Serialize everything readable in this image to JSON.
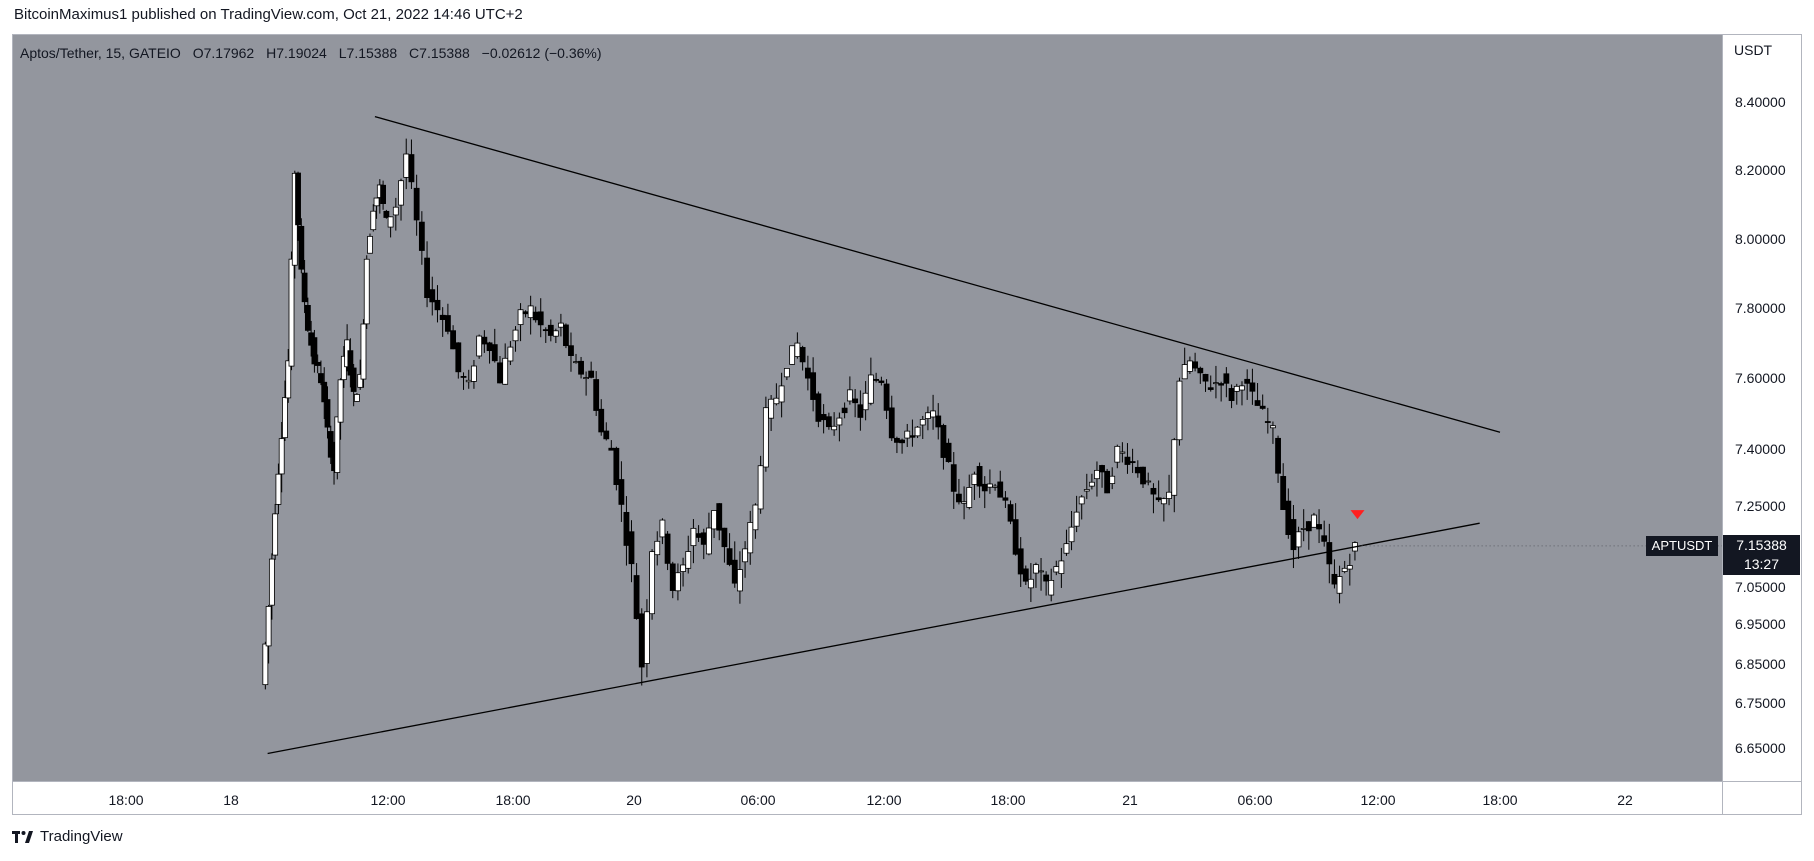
{
  "publisher": "BitcoinMaximus1 published on TradingView.com, Oct 21, 2022 14:46 UTC+2",
  "legend": {
    "symbol": "Aptos/Tether, 15, GATEIO",
    "o_key": "O",
    "o": "7.17962",
    "h_key": "H",
    "h": "7.19024",
    "l_key": "L",
    "l": "7.15388",
    "c_key": "C",
    "c": "7.15388",
    "change": "−0.02612 (−0.36%)"
  },
  "currency": "USDT",
  "price_ticks": [
    "8.40000",
    "8.20000",
    "8.00000",
    "7.80000",
    "7.60000",
    "7.40000",
    "7.25000",
    "7.05000",
    "6.95000",
    "6.85000",
    "6.75000",
    "6.65000"
  ],
  "time_ticks": [
    "18:00",
    "18",
    "12:00",
    "18:00",
    "20",
    "06:00",
    "12:00",
    "18:00",
    "21",
    "06:00",
    "12:00",
    "18:00",
    "22"
  ],
  "symbol_label": "APTUSDT",
  "last_price": "7.15388",
  "countdown": "13:27",
  "footer_brand": "TradingView",
  "colors": {
    "plot_bg": "#93969e",
    "up": "#ffffff",
    "down": "#000000",
    "marker": "#ff1f1f",
    "trend": "#000000"
  },
  "chart_data": {
    "type": "candlestick",
    "title": "Aptos/Tether, 15, GATEIO",
    "ylabel": "USDT",
    "ylim": [
      6.6,
      8.5
    ],
    "grid": false,
    "price_levels": [
      8.4,
      8.2,
      8.0,
      7.8,
      7.6,
      7.4,
      7.25,
      7.05,
      6.95,
      6.85,
      6.75,
      6.65
    ],
    "time_marks": [
      {
        "label": "18:00",
        "hours": -6
      },
      {
        "label": "18",
        "hours": 0
      },
      {
        "label": "12:00",
        "hours": 12
      },
      {
        "label": "18:00",
        "hours": 18
      },
      {
        "label": "20",
        "hours": 24
      },
      {
        "label": "06:00",
        "hours": 30
      },
      {
        "label": "12:00",
        "hours": 36
      },
      {
        "label": "18:00",
        "hours": 42
      },
      {
        "label": "21",
        "hours": 48
      },
      {
        "label": "06:00",
        "hours": 54
      },
      {
        "label": "12:00",
        "hours": 60
      },
      {
        "label": "18:00",
        "hours": 66
      },
      {
        "label": "22",
        "hours": 72
      }
    ],
    "price_path": [
      [
        2.5,
        6.8
      ],
      [
        3.0,
        7.0
      ],
      [
        3.5,
        7.25
      ],
      [
        4.0,
        7.45
      ],
      [
        4.5,
        7.65
      ],
      [
        5.0,
        8.2
      ],
      [
        5.5,
        7.9
      ],
      [
        6.0,
        7.75
      ],
      [
        6.5,
        7.65
      ],
      [
        7.0,
        7.6
      ],
      [
        7.5,
        7.45
      ],
      [
        8.0,
        7.35
      ],
      [
        8.5,
        7.6
      ],
      [
        9.0,
        7.7
      ],
      [
        9.5,
        7.55
      ],
      [
        10.0,
        7.6
      ],
      [
        10.5,
        7.95
      ],
      [
        11.0,
        8.1
      ],
      [
        11.5,
        8.15
      ],
      [
        12.0,
        8.05
      ],
      [
        12.5,
        8.1
      ],
      [
        13.0,
        8.25
      ],
      [
        13.5,
        8.05
      ],
      [
        14.0,
        7.85
      ],
      [
        14.5,
        7.8
      ],
      [
        15.0,
        7.75
      ],
      [
        15.5,
        7.62
      ],
      [
        16.0,
        7.58
      ],
      [
        16.5,
        7.72
      ],
      [
        17.0,
        7.7
      ],
      [
        17.5,
        7.6
      ],
      [
        18.0,
        7.7
      ],
      [
        18.5,
        7.78
      ],
      [
        19.0,
        7.8
      ],
      [
        19.5,
        7.75
      ],
      [
        20.0,
        7.72
      ],
      [
        20.5,
        7.75
      ],
      [
        21.0,
        7.65
      ],
      [
        21.5,
        7.62
      ],
      [
        22.0,
        7.6
      ],
      [
        22.5,
        7.45
      ],
      [
        23.0,
        7.4
      ],
      [
        23.5,
        7.25
      ],
      [
        24.0,
        7.1
      ],
      [
        24.5,
        6.85
      ],
      [
        25.0,
        7.15
      ],
      [
        25.5,
        7.2
      ],
      [
        26.0,
        7.05
      ],
      [
        26.5,
        7.1
      ],
      [
        27.0,
        7.2
      ],
      [
        27.5,
        7.15
      ],
      [
        28.0,
        7.25
      ],
      [
        28.5,
        7.15
      ],
      [
        29.0,
        7.05
      ],
      [
        29.5,
        7.15
      ],
      [
        30.0,
        7.25
      ],
      [
        30.5,
        7.5
      ],
      [
        31.0,
        7.55
      ],
      [
        31.5,
        7.65
      ],
      [
        32.0,
        7.7
      ],
      [
        32.5,
        7.6
      ],
      [
        33.0,
        7.5
      ],
      [
        33.5,
        7.45
      ],
      [
        34.0,
        7.5
      ],
      [
        34.5,
        7.55
      ],
      [
        35.0,
        7.5
      ],
      [
        35.5,
        7.6
      ],
      [
        36.0,
        7.6
      ],
      [
        36.5,
        7.45
      ],
      [
        37.0,
        7.42
      ],
      [
        37.5,
        7.45
      ],
      [
        38.0,
        7.48
      ],
      [
        38.5,
        7.5
      ],
      [
        39.0,
        7.4
      ],
      [
        39.5,
        7.3
      ],
      [
        40.0,
        7.25
      ],
      [
        40.5,
        7.35
      ],
      [
        41.0,
        7.3
      ],
      [
        41.5,
        7.32
      ],
      [
        42.0,
        7.25
      ],
      [
        42.5,
        7.15
      ],
      [
        43.0,
        7.05
      ],
      [
        43.5,
        7.1
      ],
      [
        44.0,
        7.05
      ],
      [
        44.5,
        7.1
      ],
      [
        45.0,
        7.15
      ],
      [
        45.5,
        7.25
      ],
      [
        46.0,
        7.3
      ],
      [
        46.5,
        7.35
      ],
      [
        47.0,
        7.3
      ],
      [
        47.5,
        7.4
      ],
      [
        48.0,
        7.38
      ],
      [
        48.5,
        7.35
      ],
      [
        49.0,
        7.3
      ],
      [
        49.5,
        7.25
      ],
      [
        50.0,
        7.28
      ],
      [
        50.5,
        7.6
      ],
      [
        51.0,
        7.65
      ],
      [
        51.5,
        7.6
      ],
      [
        52.0,
        7.58
      ],
      [
        52.5,
        7.6
      ],
      [
        53.0,
        7.55
      ],
      [
        53.5,
        7.6
      ],
      [
        54.0,
        7.55
      ],
      [
        54.5,
        7.5
      ],
      [
        55.0,
        7.45
      ],
      [
        55.5,
        7.25
      ],
      [
        56.0,
        7.15
      ],
      [
        56.5,
        7.2
      ],
      [
        57.0,
        7.22
      ],
      [
        57.5,
        7.15
      ],
      [
        58.0,
        7.05
      ],
      [
        58.5,
        7.1
      ],
      [
        59.0,
        7.15
      ]
    ],
    "trendlines": [
      {
        "name": "upper",
        "x1": 11.0,
        "y1": 8.36,
        "x2": 66.0,
        "y2": 7.45
      },
      {
        "name": "lower",
        "x1": 2.8,
        "y1": 6.64,
        "x2": 65.0,
        "y2": 7.21
      }
    ],
    "marker": {
      "x": 59.0,
      "y": 7.23,
      "shape": "down-triangle"
    },
    "last_price": 7.15388
  }
}
